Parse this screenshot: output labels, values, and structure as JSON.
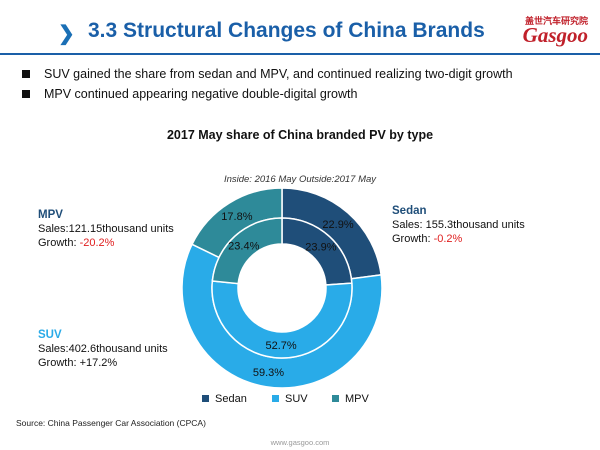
{
  "header": {
    "chevron": "❯",
    "title": "3.3 Structural Changes of China Brands",
    "logo_cn": "盖世汽车研究院",
    "logo_en": "Gasgoo"
  },
  "bullets": [
    "SUV gained the share from sedan and MPV, and continued realizing two-digit growth",
    "MPV continued appearing negative double-digital growth"
  ],
  "colors": {
    "sedan": "#1f4e79",
    "suv": "#29abe8",
    "mpv": "#2e8a99",
    "accent": "#1a5fa8",
    "negative": "#e02020"
  },
  "chart_data": {
    "type": "pie",
    "title": "2017 May share of China branded PV by type",
    "subtitle": "Inside: 2016 May Outside:2017 May",
    "categories": [
      "Sedan",
      "SUV",
      "MPV"
    ],
    "series": [
      {
        "name": "2017 May",
        "ring": "outer",
        "values": [
          22.9,
          59.3,
          17.8
        ],
        "labels": [
          "22.9%",
          "59.3%",
          "17.8%"
        ]
      },
      {
        "name": "2016 May",
        "ring": "inner",
        "values": [
          23.9,
          52.7,
          23.4
        ],
        "labels": [
          "23.9%",
          "52.7%",
          "23.4%"
        ]
      }
    ],
    "legend": {
      "position": "bottom",
      "items": [
        "Sedan",
        "SUV",
        "MPV"
      ]
    },
    "callouts": {
      "sedan": {
        "name": "Sedan",
        "sales": "Sales: 155.3thousand units",
        "growth_prefix": "Growth: ",
        "growth": "-0.2%"
      },
      "mpv": {
        "name": "MPV",
        "sales": "Sales:121.15thousand units",
        "growth_prefix": "Growth: ",
        "growth": "-20.2%"
      },
      "suv": {
        "name": "SUV",
        "sales": "Sales:402.6thousand units",
        "growth_prefix": "Growth: ",
        "growth": "+17.2%"
      }
    }
  },
  "footer": {
    "source": "Source: China Passenger Car Association (CPCA)",
    "site": "www.gasgoo.com"
  }
}
